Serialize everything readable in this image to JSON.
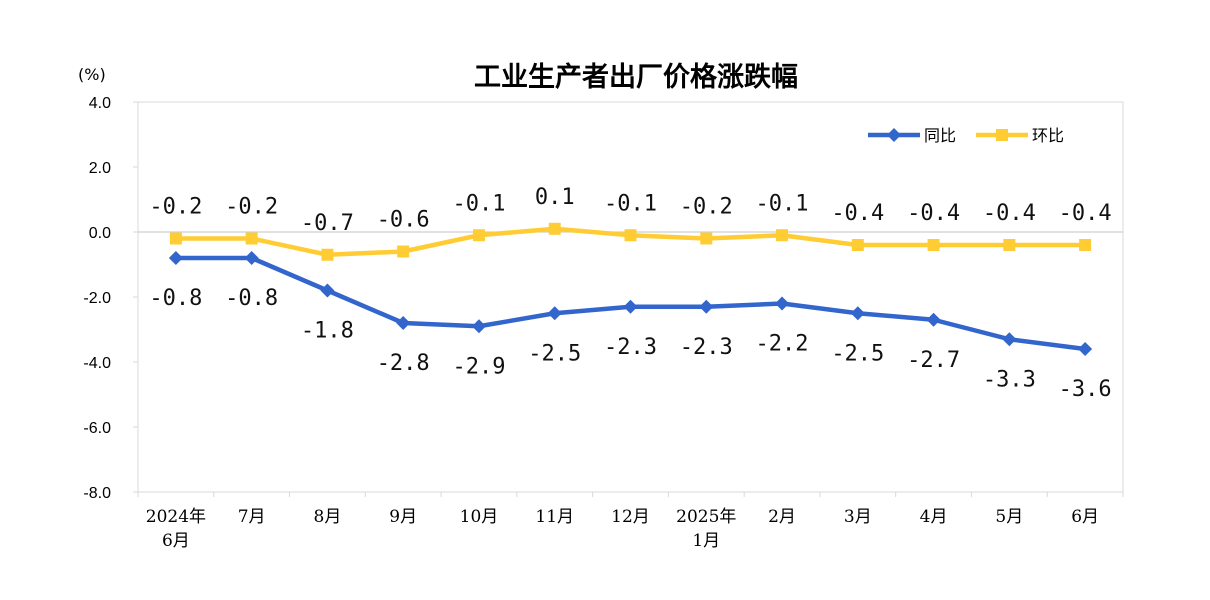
{
  "chart_data": {
    "type": "line",
    "title": "工业生产者出厂价格涨跌幅",
    "unit_label": "(%)",
    "xlabel": "",
    "ylabel": "",
    "ylim": [
      -8.0,
      4.0
    ],
    "yticks": [
      "4.0",
      "2.0",
      "0.0",
      "-2.0",
      "-4.0",
      "-6.0",
      "-8.0"
    ],
    "ytick_values": [
      4,
      2,
      0,
      -2,
      -4,
      -6,
      -8
    ],
    "categories": [
      [
        "2024年",
        "6月"
      ],
      [
        "7月"
      ],
      [
        "8月"
      ],
      [
        "9月"
      ],
      [
        "10月"
      ],
      [
        "11月"
      ],
      [
        "12月"
      ],
      [
        "2025年",
        "1月"
      ],
      [
        "2月"
      ],
      [
        "3月"
      ],
      [
        "4月"
      ],
      [
        "5月"
      ],
      [
        "6月"
      ]
    ],
    "series": [
      {
        "name": "同比",
        "color": "#3366CC",
        "marker": "diamond",
        "values": [
          -0.8,
          -0.8,
          -1.8,
          -2.8,
          -2.9,
          -2.5,
          -2.3,
          -2.3,
          -2.2,
          -2.5,
          -2.7,
          -3.3,
          -3.6
        ],
        "labels": [
          "-0.8",
          "-0.8",
          "-1.8",
          "-2.8",
          "-2.9",
          "-2.5",
          "-2.3",
          "-2.3",
          "-2.2",
          "-2.5",
          "-2.7",
          "-3.3",
          "-3.6"
        ]
      },
      {
        "name": "环比",
        "color": "#FFCC33",
        "marker": "square",
        "values": [
          -0.2,
          -0.2,
          -0.7,
          -0.6,
          -0.1,
          0.1,
          -0.1,
          -0.2,
          -0.1,
          -0.4,
          -0.4,
          -0.4,
          -0.4
        ],
        "labels": [
          "-0.2",
          "-0.2",
          "-0.7",
          "-0.6",
          "-0.1",
          "0.1",
          "-0.1",
          "-0.2",
          "-0.1",
          "-0.4",
          "-0.4",
          "-0.4",
          "-0.4"
        ]
      }
    ],
    "legend_position": "top-right",
    "grid": false,
    "zero_line": true
  }
}
